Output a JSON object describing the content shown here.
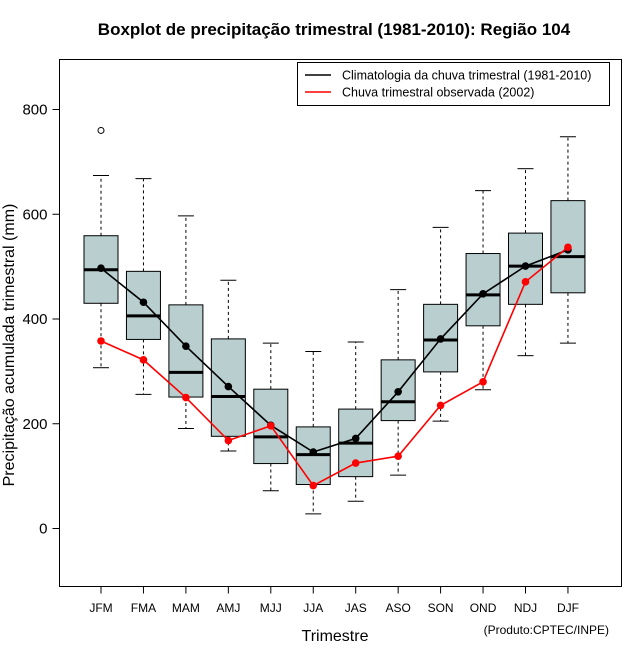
{
  "chart_data": {
    "type": "boxplot",
    "title": "Boxplot de precipitação trimestral (1981-2010): Região 104",
    "xlabel": "Trimestre",
    "ylabel": "Precipitação acumulada trimestral (mm)",
    "credit": "(Produto:CPTEC/INPE)",
    "ylim": [
      -110,
      905
    ],
    "yticks": [
      0,
      200,
      400,
      600,
      800
    ],
    "categories": [
      "JFM",
      "FMA",
      "MAM",
      "AMJ",
      "MJJ",
      "JJA",
      "JAS",
      "ASO",
      "SON",
      "OND",
      "NDJ",
      "DJF"
    ],
    "boxes": [
      {
        "whisker_low": 307,
        "q1": 430,
        "median": 494,
        "q3": 559,
        "whisker_high": 674,
        "outliers": [
          760
        ]
      },
      {
        "whisker_low": 256,
        "q1": 361,
        "median": 406,
        "q3": 491,
        "whisker_high": 668,
        "outliers": []
      },
      {
        "whisker_low": 191,
        "q1": 251,
        "median": 298,
        "q3": 427,
        "whisker_high": 597,
        "outliers": []
      },
      {
        "whisker_low": 148,
        "q1": 176,
        "median": 252,
        "q3": 362,
        "whisker_high": 474,
        "outliers": []
      },
      {
        "whisker_low": 72,
        "q1": 124,
        "median": 175,
        "q3": 266,
        "whisker_high": 354,
        "outliers": []
      },
      {
        "whisker_low": 28,
        "q1": 84,
        "median": 141,
        "q3": 194,
        "whisker_high": 338,
        "outliers": []
      },
      {
        "whisker_low": 52,
        "q1": 99,
        "median": 163,
        "q3": 228,
        "whisker_high": 356,
        "outliers": []
      },
      {
        "whisker_low": 102,
        "q1": 206,
        "median": 242,
        "q3": 322,
        "whisker_high": 456,
        "outliers": []
      },
      {
        "whisker_low": 205,
        "q1": 299,
        "median": 360,
        "q3": 428,
        "whisker_high": 575,
        "outliers": []
      },
      {
        "whisker_low": 265,
        "q1": 387,
        "median": 446,
        "q3": 525,
        "whisker_high": 645,
        "outliers": []
      },
      {
        "whisker_low": 330,
        "q1": 428,
        "median": 501,
        "q3": 564,
        "whisker_high": 687,
        "outliers": []
      },
      {
        "whisker_low": 354,
        "q1": 450,
        "median": 519,
        "q3": 626,
        "whisker_high": 748,
        "outliers": []
      }
    ],
    "series": [
      {
        "name": "Climatologia da chuva trimestral (1981-2010)",
        "color": "#000000",
        "values": [
          497,
          432,
          348,
          271,
          197,
          146,
          172,
          261,
          362,
          448,
          501,
          532
        ]
      },
      {
        "name": "Chuva trimestral observada (2002)",
        "color": "#ff0000",
        "values": [
          358,
          322,
          250,
          168,
          196,
          82,
          125,
          138,
          235,
          280,
          471,
          537
        ]
      }
    ],
    "legend_position": "top-right",
    "box_fill": "#b8cecf"
  }
}
